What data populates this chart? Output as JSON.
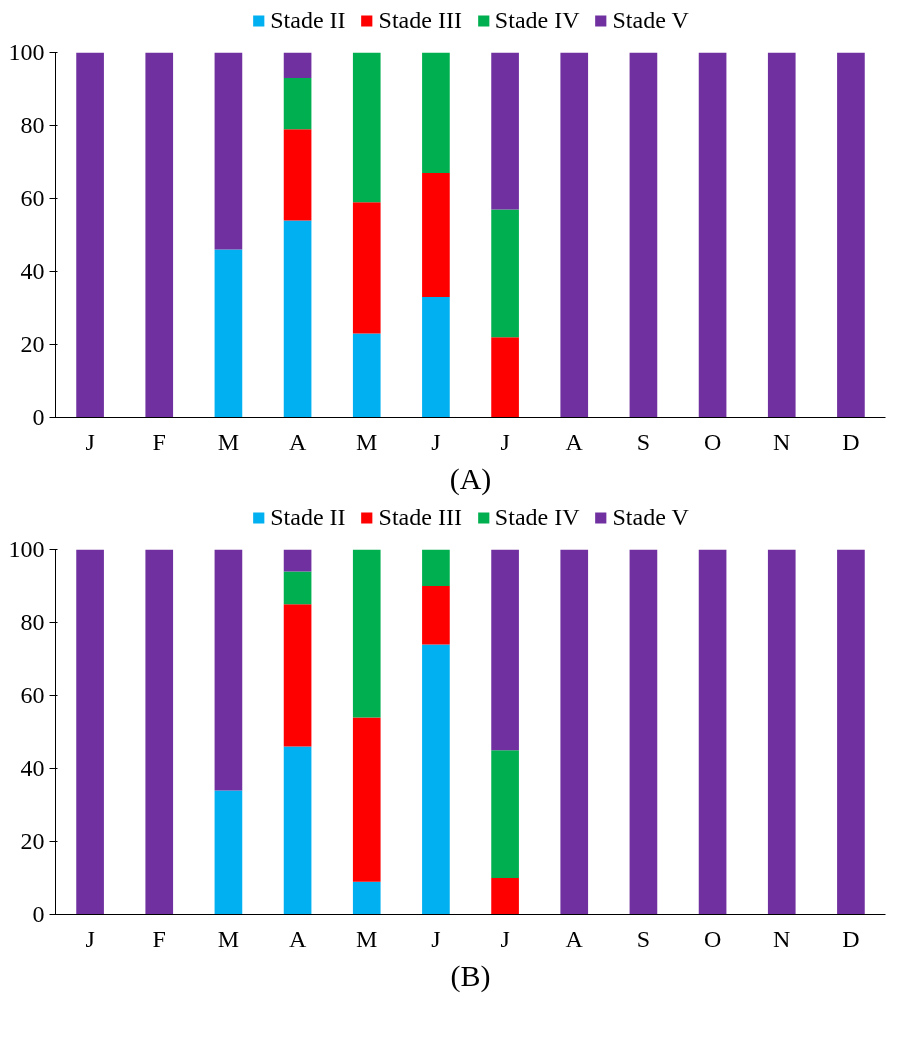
{
  "chart_data": [
    {
      "type": "bar",
      "stacked": true,
      "xlabel": "(A)",
      "categories": [
        "J",
        "F",
        "M",
        "A",
        "M",
        "J",
        "J",
        "A",
        "S",
        "O",
        "N",
        "D"
      ],
      "ylim": [
        0,
        100
      ],
      "yticks": [
        0,
        20,
        40,
        60,
        80,
        100
      ],
      "grid": false,
      "legend": "top",
      "series": [
        {
          "name": "Stade II",
          "color": "#00b0f0",
          "values": [
            0,
            0,
            46,
            54,
            23,
            33,
            0,
            0,
            0,
            0,
            0,
            0
          ]
        },
        {
          "name": "Stade III",
          "color": "#ff0000",
          "values": [
            0,
            0,
            0,
            25,
            36,
            34,
            22,
            0,
            0,
            0,
            0,
            0
          ]
        },
        {
          "name": "Stade IV",
          "color": "#00b050",
          "values": [
            0,
            0,
            0,
            14,
            41,
            33,
            35,
            0,
            0,
            0,
            0,
            0
          ]
        },
        {
          "name": "Stade V",
          "color": "#7030a0",
          "values": [
            100,
            100,
            54,
            7,
            0,
            0,
            43,
            100,
            100,
            100,
            100,
            100
          ]
        }
      ]
    },
    {
      "type": "bar",
      "stacked": true,
      "xlabel": "(B)",
      "categories": [
        "J",
        "F",
        "M",
        "A",
        "M",
        "J",
        "J",
        "A",
        "S",
        "O",
        "N",
        "D"
      ],
      "ylim": [
        0,
        100
      ],
      "yticks": [
        0,
        20,
        40,
        60,
        80,
        100
      ],
      "grid": false,
      "legend": "top",
      "series": [
        {
          "name": "Stade II",
          "color": "#00b0f0",
          "values": [
            0,
            0,
            34,
            46,
            9,
            74,
            0,
            0,
            0,
            0,
            0,
            0
          ]
        },
        {
          "name": "Stade III",
          "color": "#ff0000",
          "values": [
            0,
            0,
            0,
            39,
            45,
            16,
            10,
            0,
            0,
            0,
            0,
            0
          ]
        },
        {
          "name": "Stade IV",
          "color": "#00b050",
          "values": [
            0,
            0,
            0,
            9,
            46,
            10,
            35,
            0,
            0,
            0,
            0,
            0
          ]
        },
        {
          "name": "Stade V",
          "color": "#7030a0",
          "values": [
            100,
            100,
            66,
            6,
            0,
            0,
            55,
            100,
            100,
            100,
            100,
            100
          ]
        }
      ]
    }
  ]
}
